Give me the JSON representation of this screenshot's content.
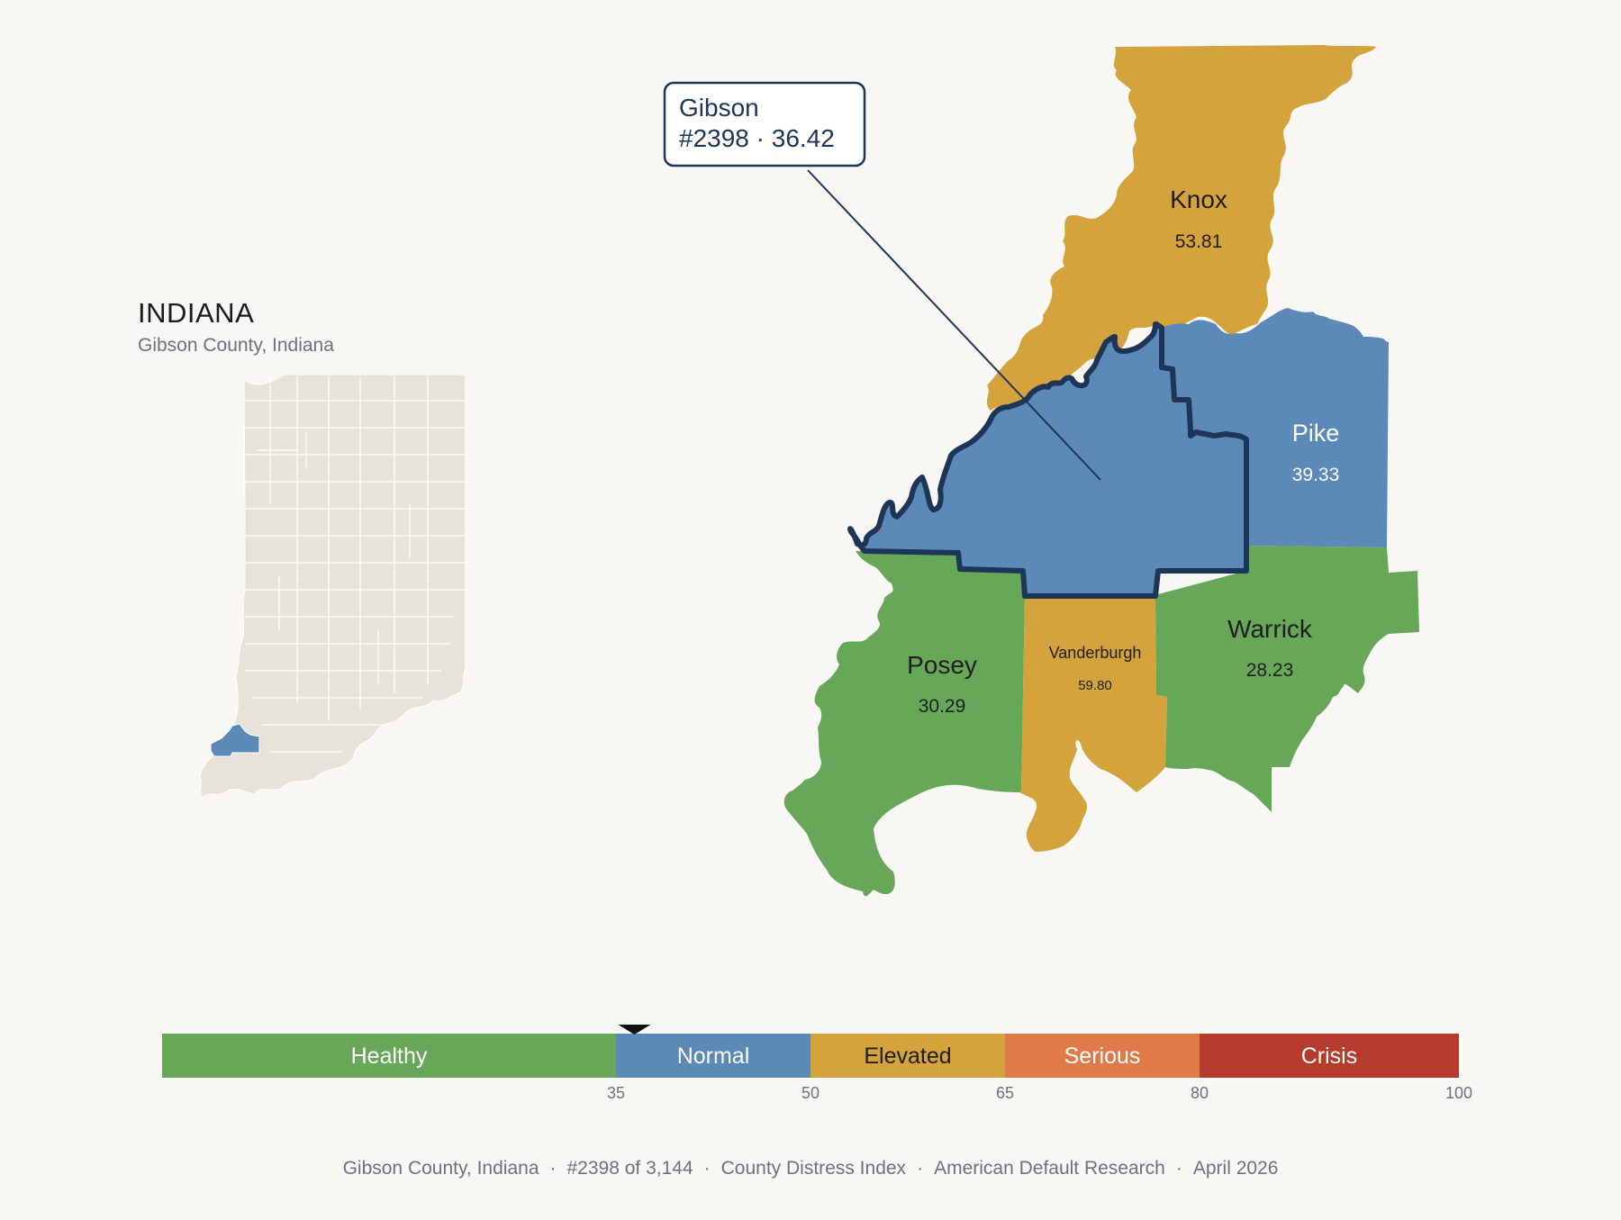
{
  "inset": {
    "state_name": "INDIANA",
    "subtitle": "Gibson County, Indiana"
  },
  "focus_county": {
    "name": "Gibson",
    "rank_label": "#2398",
    "score": "36.42",
    "callout_line2": "#2398 · 36.42",
    "color": "#5b8ab8"
  },
  "neighbors": [
    {
      "id": "knox",
      "name": "Knox",
      "score": "53.81",
      "category": "Elevated"
    },
    {
      "id": "pike",
      "name": "Pike",
      "score": "39.33",
      "category": "Normal"
    },
    {
      "id": "posey",
      "name": "Posey",
      "score": "30.29",
      "category": "Healthy"
    },
    {
      "id": "vanderburgh",
      "name": "Vanderburgh",
      "score": "59.80",
      "category": "Elevated"
    },
    {
      "id": "warrick",
      "name": "Warrick",
      "score": "28.23",
      "category": "Healthy"
    }
  ],
  "colors": {
    "healthy": "#67a758",
    "normal": "#5b8ab8",
    "elevated": "#d4a33b",
    "serious": "#e07b49",
    "crisis": "#b73b2c",
    "outline": "#1d3557",
    "inset_fill": "#e8e3d9",
    "background": "#f9f7f3"
  },
  "scale": {
    "min": 0,
    "max": 100,
    "marker_value": 36.42,
    "bands": [
      {
        "label": "Healthy",
        "from": 0,
        "to": 35,
        "color": "#67a758"
      },
      {
        "label": "Normal",
        "from": 35,
        "to": 50,
        "color": "#5b8ab8"
      },
      {
        "label": "Elevated",
        "from": 50,
        "to": 65,
        "color": "#d4a33b"
      },
      {
        "label": "Serious",
        "from": 65,
        "to": 80,
        "color": "#e07b49"
      },
      {
        "label": "Crisis",
        "from": 80,
        "to": 100,
        "color": "#b73b2c"
      }
    ],
    "ticks": [
      "35",
      "50",
      "65",
      "80",
      "100"
    ]
  },
  "footer": {
    "items": [
      "Gibson County, Indiana",
      "#2398 of 3,144",
      "County Distress Index",
      "American Default Research",
      "April 2026"
    ]
  }
}
